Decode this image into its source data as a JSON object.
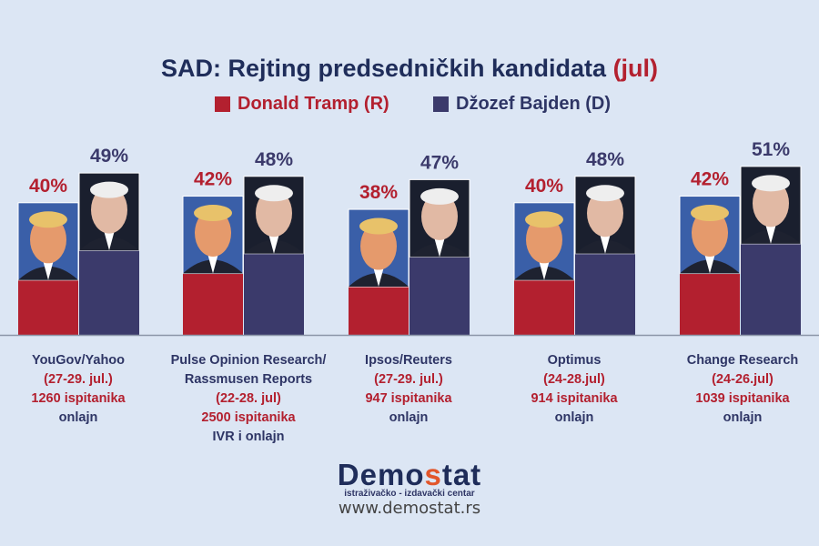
{
  "chart_data": {
    "type": "bar",
    "title": "SAD: Rejting predsedničkih kandidata",
    "title_accent": "(jul)",
    "categories": [
      "YouGov/Yahoo",
      "Pulse Opinion Research/ Rassmusen Reports",
      "Ipsos/Reuters",
      "Optimus",
      "Change Research"
    ],
    "series": [
      {
        "name": "Donald Tramp (R)",
        "color": "#b3202f",
        "values": [
          40,
          42,
          38,
          40,
          42
        ]
      },
      {
        "name": "Džozef Bajden (D)",
        "color": "#3b3a6b",
        "values": [
          49,
          48,
          47,
          48,
          51
        ]
      }
    ],
    "value_suffix": "%",
    "legend": "top",
    "grid": false
  },
  "labels": [
    {
      "poll": "YouGov/Yahoo",
      "dates": "(27-29. jul.)",
      "sample": "1260 ispitanika",
      "mode": "onlajn"
    },
    {
      "poll": "Pulse Opinion Research/",
      "poll2": "Rassmusen Reports",
      "dates": "(22-28. jul)",
      "sample": "2500 ispitanika",
      "mode": "IVR i onlajn"
    },
    {
      "poll": "Ipsos/Reuters",
      "dates": "(27-29. jul.)",
      "sample": "947 ispitanika",
      "mode": "onlajn"
    },
    {
      "poll": "Optimus",
      "dates": "(24-28.jul)",
      "sample": "914 ispitanika",
      "mode": "onlajn"
    },
    {
      "poll": "Change Research",
      "dates": "(24-26.jul)",
      "sample": "1039 ispitanika",
      "mode": "onlajn"
    }
  ],
  "logo": {
    "name_a": "Demo",
    "name_b": "s",
    "name_c": "tat",
    "tagline": "istraživačko - izdavački centar",
    "url": "www.demostat.rs"
  },
  "colors": {
    "background": "#dce6f4",
    "title": "#1f2d5a"
  }
}
